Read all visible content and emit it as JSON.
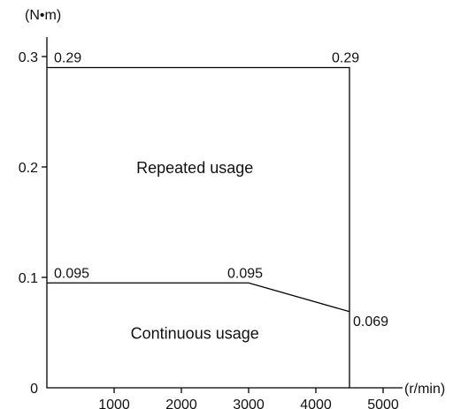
{
  "chart_data": {
    "type": "line",
    "title": "",
    "xlabel": "",
    "ylabel": "",
    "x_unit": "(r/min)",
    "y_unit": "(N•m)",
    "xlim": [
      0,
      5000
    ],
    "ylim": [
      0,
      0.3
    ],
    "x_ticks": [
      1000,
      2000,
      3000,
      4000,
      5000
    ],
    "x_tick_labels": [
      "1000",
      "2000",
      "3000",
      "4000",
      "5000"
    ],
    "y_ticks": [
      0,
      0.1,
      0.2,
      0.3
    ],
    "y_tick_labels": [
      "0",
      "0.1",
      "0.2",
      "0.3"
    ],
    "grid": false,
    "series": [
      {
        "key": "repeated",
        "x": [
          0,
          4500,
          4500
        ],
        "y": [
          0.29,
          0.29,
          0
        ]
      },
      {
        "key": "continuous",
        "x": [
          0,
          3000,
          4500
        ],
        "y": [
          0.095,
          0.095,
          0.069
        ]
      }
    ],
    "regions": [
      {
        "key": "repeated",
        "text": "Repeated usage",
        "x": 2200,
        "y": 0.2
      },
      {
        "key": "continuous",
        "text": "Continuous usage",
        "x": 2200,
        "y": 0.05
      }
    ],
    "data_labels": [
      {
        "key": "rep-start",
        "text": "0.29",
        "x": 0,
        "y": 0.29
      },
      {
        "key": "rep-end",
        "text": "0.29",
        "x": 4500,
        "y": 0.29
      },
      {
        "key": "cont-start",
        "text": "0.095",
        "x": 0,
        "y": 0.095
      },
      {
        "key": "cont-knee",
        "text": "0.095",
        "x": 3000,
        "y": 0.095
      },
      {
        "key": "cont-end",
        "text": "0.069",
        "x": 4500,
        "y": 0.069
      }
    ]
  }
}
